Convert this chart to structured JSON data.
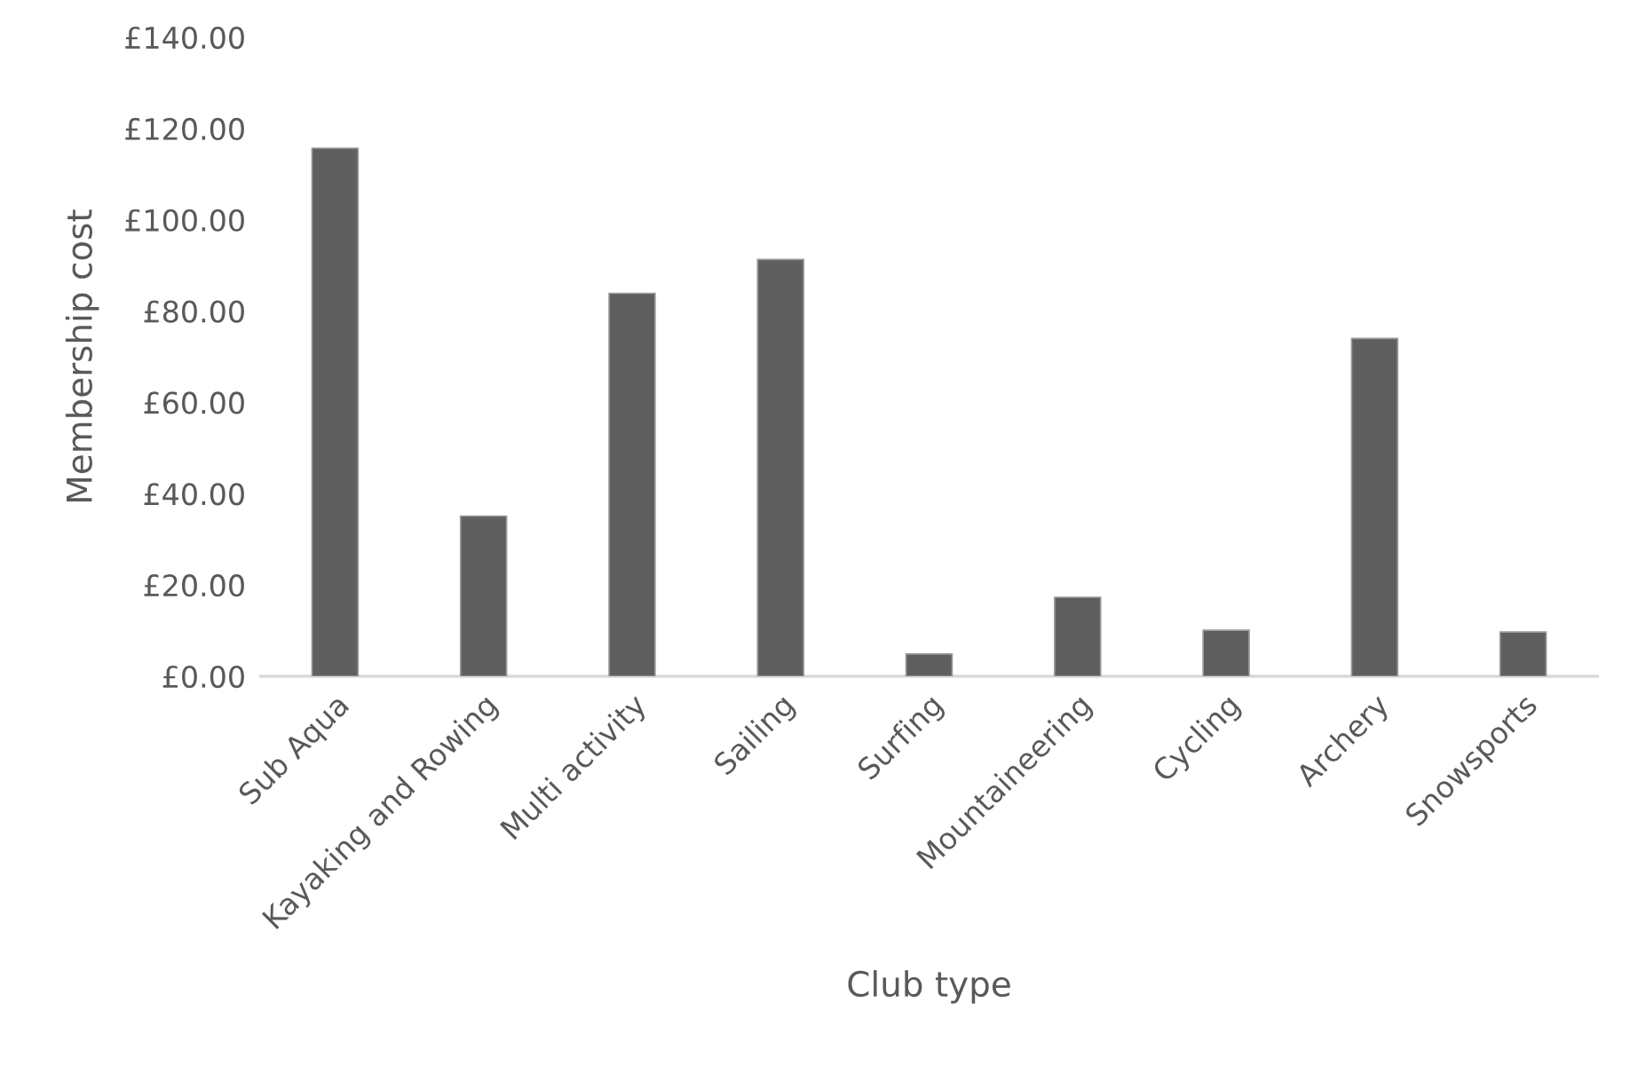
{
  "chart_data": {
    "type": "bar",
    "xlabel": "Club type",
    "ylabel": "Membership cost",
    "categories": [
      "Sub Aqua",
      "Kayaking and Rowing",
      "Multi activity",
      "Sailing",
      "Surfing",
      "Mountaineering",
      "Cycling",
      "Archery",
      "Snowsports"
    ],
    "values": [
      115.7,
      35.1,
      83.9,
      91.3,
      4.9,
      17.3,
      10.1,
      74.0,
      9.7
    ],
    "color": "#5f5f5f",
    "ylim": [
      0,
      140
    ],
    "yticks": [
      {
        "value": 0,
        "label": "£0.00"
      },
      {
        "value": 20,
        "label": "£20.00"
      },
      {
        "value": 40,
        "label": "£40.00"
      },
      {
        "value": 60,
        "label": "£60.00"
      },
      {
        "value": 80,
        "label": "£80.00"
      },
      {
        "value": 100,
        "label": "£100.00"
      },
      {
        "value": 120,
        "label": "£120.00"
      },
      {
        "value": 140,
        "label": "£140.00"
      }
    ],
    "grid": false,
    "legend": false
  }
}
